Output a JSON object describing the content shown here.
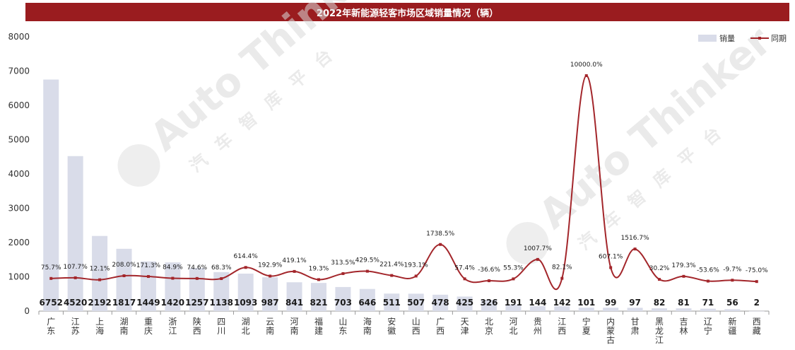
{
  "header": {
    "title": "2022年新能源轻客市场区域销量情况（辆）"
  },
  "watermark": {
    "text": "Auto Thinker",
    "subtext": "汽车智库平台"
  },
  "colors": {
    "title_bg": "#9a1c1f",
    "bar": "#d9dce9",
    "line": "#a3262b"
  },
  "chart_data": {
    "type": "bar",
    "title": "2022年新能源轻客市场区域销量情况（辆）",
    "categories": [
      "广东",
      "江苏",
      "上海",
      "湖南",
      "重庆",
      "浙江",
      "陕西",
      "四川",
      "湖北",
      "云南",
      "河南",
      "福建",
      "山东",
      "海南",
      "安徽",
      "山西",
      "广西",
      "天津",
      "北京",
      "河北",
      "贵州",
      "江西",
      "宁夏",
      "内蒙古",
      "甘肃",
      "黑龙江",
      "吉林",
      "辽宁",
      "新疆",
      "西藏"
    ],
    "series": [
      {
        "name": "销量",
        "type": "bar",
        "values": [
          6752,
          4520,
          2192,
          1817,
          1449,
          1420,
          1257,
          1138,
          1093,
          987,
          841,
          821,
          703,
          646,
          511,
          507,
          478,
          425,
          326,
          191,
          144,
          142,
          101,
          99,
          97,
          82,
          81,
          71,
          56,
          2
        ]
      },
      {
        "name": "同期",
        "type": "line",
        "unit": "%",
        "values": [
          75.7,
          107.7,
          12.1,
          208.0,
          171.3,
          84.9,
          74.6,
          68.3,
          614.4,
          192.9,
          419.1,
          19.3,
          313.5,
          429.5,
          221.4,
          193.1,
          1738.5,
          57.4,
          -36.6,
          55.3,
          1007.7,
          82.1,
          10000.0,
          607.1,
          1516.7,
          30.2,
          179.3,
          -53.6,
          -9.7,
          -75.0
        ],
        "labels": [
          "75.7%",
          "107.7%",
          "12.1%",
          "208.0%",
          "171.3%",
          "84.9%",
          "74.6%",
          "68.3%",
          "614.4%",
          "192.9%",
          "419.1%",
          "19.3%",
          "313.5%",
          "429.5%",
          "221.4%",
          "193.1%",
          "1738.5%",
          "57.4%",
          "-36.6%",
          "55.3%",
          "1007.7%",
          "82.1%",
          "10000.0%",
          "607.1%",
          "1516.7%",
          "30.2%",
          "179.3%",
          "-53.6%",
          "-9.7%",
          "-75.0%"
        ]
      }
    ],
    "y_ticks": [
      0,
      1000,
      2000,
      3000,
      4000,
      5000,
      6000,
      7000,
      8000
    ],
    "ylim": [
      0,
      8000
    ],
    "grid": false,
    "legend_position": "top-right"
  }
}
